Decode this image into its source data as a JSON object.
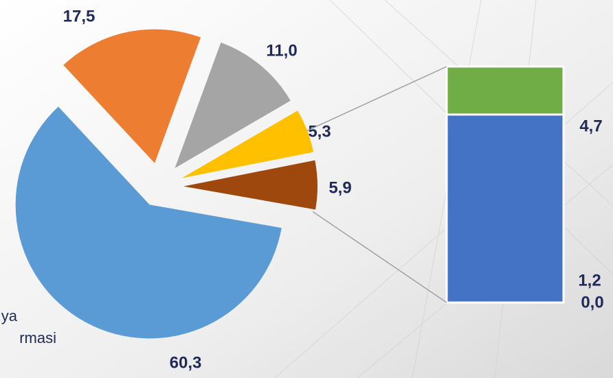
{
  "chart_data": {
    "type": "pie_bar",
    "annotations": [
      "ya",
      "rmasi"
    ],
    "pie": {
      "values": [
        60.3,
        17.5,
        11.0,
        5.3,
        5.9
      ],
      "value_labels": [
        "60,3",
        "17,5",
        "11,0",
        "5,3",
        "5,9"
      ],
      "colors": [
        "#5b9bd5",
        "#ed7d31",
        "#a5a5a5",
        "#ffc000",
        "#9e480e"
      ]
    },
    "bar": {
      "values": [
        4.7,
        1.2,
        0.0
      ],
      "value_labels": [
        "4,7",
        "1,2",
        "0,0"
      ],
      "colors": [
        "#4472c4",
        "#70ad47",
        "#264478"
      ]
    }
  }
}
